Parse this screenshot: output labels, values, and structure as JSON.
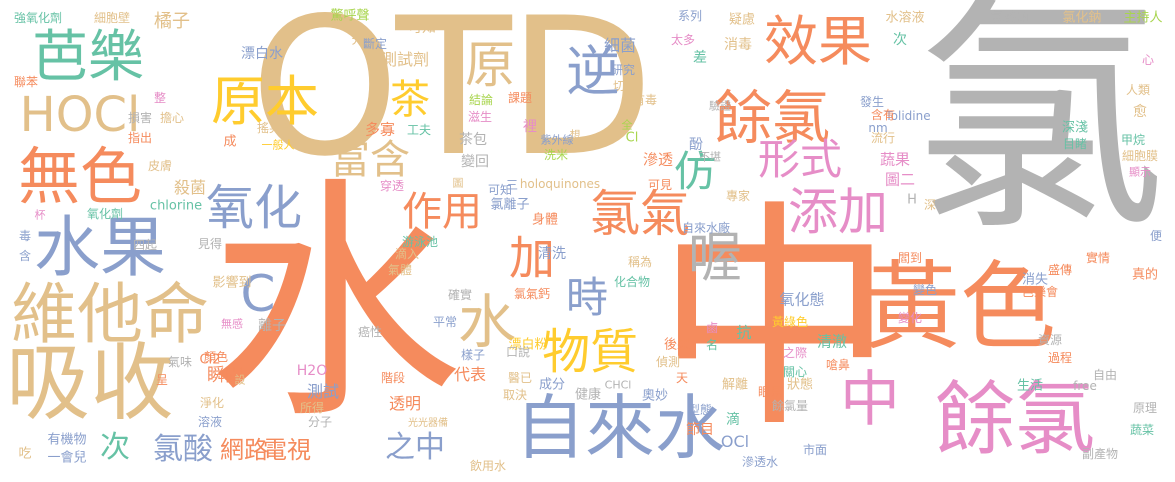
{
  "palette": {
    "tan": "#E2C08A",
    "orange": "#F58B5D",
    "gray": "#B3B3B3",
    "blue": "#8A9FCC",
    "green": "#66C2A5",
    "pink": "#E68DC7",
    "yellow": "#FFCC2E",
    "lime": "#A8D54E"
  },
  "words": [
    {
      "text": "氯",
      "color": "gray"
    },
    {
      "text": "水",
      "color": "orange"
    },
    {
      "text": "中",
      "color": "orange"
    },
    {
      "text": "OTD",
      "color": "tan"
    },
    {
      "text": "黃色",
      "color": "orange"
    },
    {
      "text": "餘氯",
      "color": "pink"
    },
    {
      "text": "吸收",
      "color": "tan"
    },
    {
      "text": "自來水",
      "color": "blue"
    },
    {
      "text": "維他命",
      "color": "tan"
    },
    {
      "text": "水果",
      "color": "blue"
    },
    {
      "text": "無色",
      "color": "orange"
    },
    {
      "text": "芭樂",
      "color": "green"
    },
    {
      "text": "餘氯",
      "color": "orange"
    },
    {
      "text": "效果",
      "color": "orange"
    },
    {
      "text": "中",
      "color": "pink"
    },
    {
      "text": "HOCl",
      "color": "tan"
    },
    {
      "text": "原本",
      "color": "yellow"
    },
    {
      "text": "原",
      "color": "tan"
    },
    {
      "text": "逆",
      "color": "blue"
    },
    {
      "text": "茶",
      "color": "yellow"
    },
    {
      "text": "水",
      "color": "tan"
    },
    {
      "text": "物質",
      "color": "yellow"
    },
    {
      "text": "氯氣",
      "color": "orange"
    },
    {
      "text": "添加",
      "color": "pink"
    },
    {
      "text": "形式",
      "color": "pink"
    },
    {
      "text": "仿",
      "color": "green"
    },
    {
      "text": "喔",
      "color": "gray"
    },
    {
      "text": "時",
      "color": "blue"
    },
    {
      "text": "加",
      "color": "orange"
    },
    {
      "text": "作用",
      "color": "orange"
    },
    {
      "text": "富含",
      "color": "tan"
    },
    {
      "text": "氧化",
      "color": "blue"
    },
    {
      "text": "C",
      "color": "blue"
    },
    {
      "text": "次",
      "color": "green"
    },
    {
      "text": "氯酸",
      "color": "blue"
    },
    {
      "text": "網路",
      "color": "orange"
    },
    {
      "text": "電視",
      "color": "orange"
    },
    {
      "text": "之中",
      "color": "blue"
    },
    {
      "text": "強氧化劑",
      "color": "green"
    },
    {
      "text": "細胞壁",
      "color": "tan"
    },
    {
      "text": "橘子",
      "color": "tan"
    },
    {
      "text": "驚呼聲",
      "color": "lime"
    },
    {
      "text": "可知",
      "color": "tan"
    },
    {
      "text": "系列",
      "color": "blue"
    },
    {
      "text": "疑慮",
      "color": "tan"
    },
    {
      "text": "氯酸鈉",
      "color": "gray"
    },
    {
      "text": "氯化鈉",
      "color": "tan"
    },
    {
      "text": "主持人",
      "color": "lime"
    },
    {
      "text": "漂白水",
      "color": "blue"
    },
    {
      "text": "測試劑",
      "color": "tan"
    },
    {
      "text": "細菌",
      "color": "blue"
    },
    {
      "text": "消毒",
      "color": "tan"
    },
    {
      "text": "水溶液",
      "color": "tan"
    },
    {
      "text": "聯苯",
      "color": "orange"
    },
    {
      "text": "損害",
      "color": "gray"
    },
    {
      "text": "擔心",
      "color": "tan"
    },
    {
      "text": "搖晃數",
      "color": "tan"
    },
    {
      "text": "一般人",
      "color": "yellow"
    },
    {
      "text": "殺菌",
      "color": "tan"
    },
    {
      "text": "皮膚",
      "color": "tan"
    },
    {
      "text": "氧化劑",
      "color": "green"
    },
    {
      "text": "chlorine",
      "color": "green"
    },
    {
      "text": "四起",
      "color": "gray"
    },
    {
      "text": "見得",
      "color": "gray"
    },
    {
      "text": "影響到",
      "color": "tan"
    },
    {
      "text": "離子",
      "color": "gray"
    },
    {
      "text": "癌性",
      "color": "gray"
    },
    {
      "text": "瞬間",
      "color": "orange"
    },
    {
      "text": "Cl2",
      "color": "orange"
    },
    {
      "text": "H2O",
      "color": "pink"
    },
    {
      "text": "測試",
      "color": "blue"
    },
    {
      "text": "透明",
      "color": "orange"
    },
    {
      "text": "代表",
      "color": "orange"
    },
    {
      "text": "成分",
      "color": "blue"
    },
    {
      "text": "健康",
      "color": "gray"
    },
    {
      "text": "CHCl",
      "color": "gray"
    },
    {
      "text": "奧妙",
      "color": "blue"
    },
    {
      "text": "解離",
      "color": "tan"
    },
    {
      "text": "狀態",
      "color": "tan"
    },
    {
      "text": "生活",
      "color": "green"
    },
    {
      "text": "free",
      "color": "gray"
    },
    {
      "text": "原理",
      "color": "gray"
    },
    {
      "text": "餘氯量",
      "color": "gray"
    },
    {
      "text": "市面",
      "color": "blue"
    },
    {
      "text": "副產物",
      "color": "gray"
    },
    {
      "text": "飲用水",
      "color": "tan"
    },
    {
      "text": "有機物",
      "color": "blue"
    },
    {
      "text": "一會兒",
      "color": "blue"
    },
    {
      "text": "滲透水",
      "color": "blue"
    },
    {
      "text": "蔬菜",
      "color": "green"
    },
    {
      "text": "自由",
      "color": "gray"
    },
    {
      "text": "甲烷",
      "color": "green"
    },
    {
      "text": "細胞膜",
      "color": "tan"
    },
    {
      "text": "深淺",
      "color": "green"
    },
    {
      "text": "目睹",
      "color": "green"
    },
    {
      "text": "人類",
      "color": "tan"
    },
    {
      "text": "氧化態",
      "color": "blue"
    },
    {
      "text": "清澈",
      "color": "green"
    },
    {
      "text": "滲透",
      "color": "orange"
    },
    {
      "text": "洗米",
      "color": "lime"
    },
    {
      "text": "蔬果",
      "color": "pink"
    },
    {
      "text": "圖二",
      "color": "pink"
    },
    {
      "text": "Tolidine",
      "color": "blue"
    },
    {
      "text": "holoquinones",
      "color": "tan"
    },
    {
      "text": "自來水廠",
      "color": "blue"
    },
    {
      "text": "游泳池",
      "color": "green"
    },
    {
      "text": "氯離子",
      "color": "blue"
    },
    {
      "text": "漂白粉",
      "color": "yellow"
    },
    {
      "text": "流行",
      "color": "tan"
    },
    {
      "text": "含有",
      "color": "orange"
    },
    {
      "text": "研究",
      "color": "blue"
    },
    {
      "text": "切片",
      "color": "tan"
    },
    {
      "text": "有毒",
      "color": "tan"
    },
    {
      "text": "課題",
      "color": "orange"
    },
    {
      "text": "結論",
      "color": "lime"
    },
    {
      "text": "滋生",
      "color": "pink"
    },
    {
      "text": "多寡",
      "color": "orange"
    },
    {
      "text": "工夫",
      "color": "green"
    },
    {
      "text": "茶包",
      "color": "gray"
    },
    {
      "text": "變回",
      "color": "gray"
    },
    {
      "text": "Cl",
      "color": "lime"
    },
    {
      "text": "酚",
      "color": "blue"
    },
    {
      "text": "身體",
      "color": "orange"
    },
    {
      "text": "清洗",
      "color": "blue"
    },
    {
      "text": "消失",
      "color": "blue"
    },
    {
      "text": "實情",
      "color": "orange"
    },
    {
      "text": "盛傳",
      "color": "orange"
    },
    {
      "text": "真的",
      "color": "orange"
    },
    {
      "text": "芭樂會",
      "color": "orange"
    },
    {
      "text": "變化",
      "color": "pink"
    },
    {
      "text": "嗆鼻",
      "color": "orange"
    },
    {
      "text": "資源",
      "color": "gray"
    },
    {
      "text": "過程",
      "color": "orange"
    },
    {
      "text": "眼見",
      "color": "orange"
    },
    {
      "text": "型態",
      "color": "blue"
    },
    {
      "text": "節目",
      "color": "orange"
    },
    {
      "text": "滴",
      "color": "green"
    },
    {
      "text": "OCl",
      "color": "blue"
    },
    {
      "text": "後果",
      "color": "orange"
    },
    {
      "text": "偵測",
      "color": "tan"
    },
    {
      "text": "關心",
      "color": "green"
    },
    {
      "text": "之際",
      "color": "pink"
    },
    {
      "text": "抗",
      "color": "green"
    },
    {
      "text": "名",
      "color": "green"
    },
    {
      "text": "鹵",
      "color": "pink"
    },
    {
      "text": "黃綠色",
      "color": "yellow"
    },
    {
      "text": "變色",
      "color": "blue"
    },
    {
      "text": "閻到",
      "color": "orange"
    },
    {
      "text": "稱為",
      "color": "tan"
    },
    {
      "text": "化合物",
      "color": "green"
    },
    {
      "text": "確實",
      "color": "gray"
    },
    {
      "text": "氯氣鈣",
      "color": "orange"
    },
    {
      "text": "平常",
      "color": "blue"
    },
    {
      "text": "口說",
      "color": "gray"
    },
    {
      "text": "樣子",
      "color": "blue"
    },
    {
      "text": "醫已",
      "color": "tan"
    },
    {
      "text": "取決",
      "color": "tan"
    },
    {
      "text": "階段",
      "color": "orange"
    },
    {
      "text": "光光器備",
      "color": "tan"
    },
    {
      "text": "分子",
      "color": "gray"
    },
    {
      "text": "所得",
      "color": "tan"
    },
    {
      "text": "溶液",
      "color": "blue"
    },
    {
      "text": "顏色",
      "color": "orange"
    },
    {
      "text": "氣味",
      "color": "gray"
    },
    {
      "text": "淨化",
      "color": "tan"
    },
    {
      "text": "設",
      "color": "tan"
    },
    {
      "text": "呈",
      "color": "orange"
    },
    {
      "text": "吃",
      "color": "tan"
    },
    {
      "text": "毒",
      "color": "blue"
    },
    {
      "text": "含",
      "color": "blue"
    },
    {
      "text": "杯",
      "color": "pink"
    },
    {
      "text": "無感",
      "color": "pink"
    },
    {
      "text": "氣體",
      "color": "tan"
    },
    {
      "text": "滴入",
      "color": "tan"
    },
    {
      "text": "先",
      "color": "tan"
    },
    {
      "text": "斷定",
      "color": "blue"
    },
    {
      "text": "全",
      "color": "lime"
    },
    {
      "text": "裡",
      "color": "pink"
    },
    {
      "text": "紫外線",
      "color": "blue"
    },
    {
      "text": "太多",
      "color": "pink"
    },
    {
      "text": "差",
      "color": "green"
    },
    {
      "text": "次",
      "color": "green"
    },
    {
      "text": "心",
      "color": "pink"
    },
    {
      "text": "愈",
      "color": "tan"
    },
    {
      "text": "發生",
      "color": "blue"
    },
    {
      "text": "驗證",
      "color": "gray"
    },
    {
      "text": "指出",
      "color": "orange"
    },
    {
      "text": "整",
      "color": "pink"
    },
    {
      "text": "成",
      "color": "orange"
    },
    {
      "text": "三",
      "color": "blue"
    },
    {
      "text": "圖",
      "color": "tan"
    },
    {
      "text": "想",
      "color": "tan"
    },
    {
      "text": "穿透",
      "color": "pink"
    },
    {
      "text": "可見",
      "color": "orange"
    },
    {
      "text": "專家",
      "color": "tan"
    },
    {
      "text": "不堪",
      "color": "gray"
    },
    {
      "text": "H",
      "color": "gray"
    },
    {
      "text": "深",
      "color": "tan"
    },
    {
      "text": "顯示",
      "color": "pink"
    },
    {
      "text": "nm",
      "color": "blue"
    },
    {
      "text": "便",
      "color": "blue"
    },
    {
      "text": "天",
      "color": "orange"
    },
    {
      "text": "可知",
      "color": "blue"
    }
  ]
}
